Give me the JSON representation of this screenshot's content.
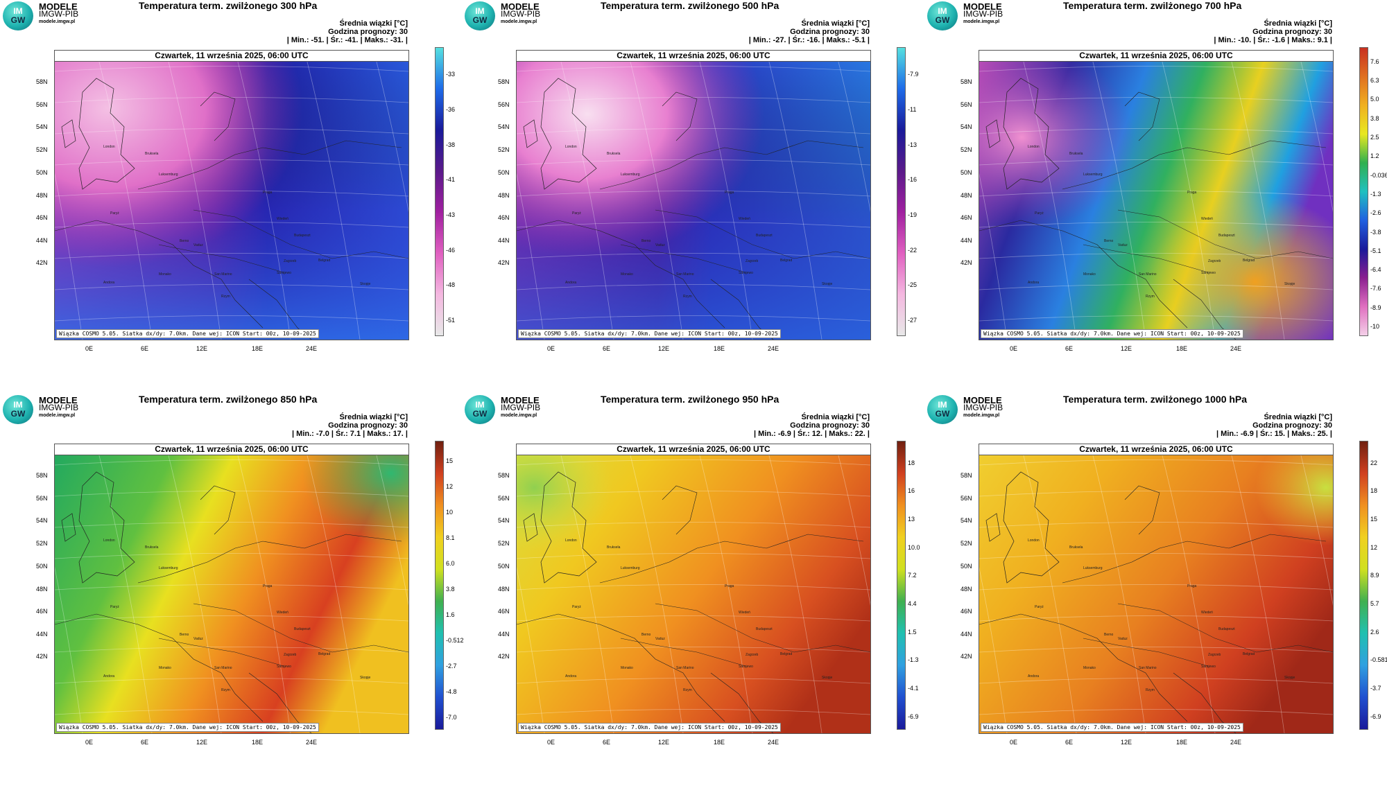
{
  "common": {
    "brand_line1": "MODELE",
    "brand_line2": "IMGW-PIB",
    "brand_line3": "modele.imgw.pl",
    "logo_top": "IM",
    "logo_bottom": "GW",
    "meta_line1": "Średnia wiązki [°C]",
    "meta_line2": "Godzina prognozy: 30",
    "map_header": "Czwartek, 11 września 2025, 06:00 UTC",
    "footer": "Wiązka COSMO 5.05. Siatka dx/dy: 7.0km. Dane wej: ICON Start: 00z, 10-09-2025",
    "lat_labels": [
      "58N",
      "56N",
      "54N",
      "52N",
      "50N",
      "48N",
      "46N",
      "44N",
      "42N"
    ],
    "lon_labels": [
      "0E",
      "6E",
      "12E",
      "18E",
      "24E"
    ],
    "cities": [
      "London",
      "Bruksela",
      "Luksemburg",
      "Paryż",
      "Praga",
      "Wiedeń",
      "Budapeszt",
      "Berno",
      "Vaduz",
      "Monako",
      "Andora",
      "Zagrzeb",
      "San Marino",
      "Sarajewo",
      "Belgrad",
      "Skopje",
      "Rzym"
    ]
  },
  "panels": [
    {
      "title": "Temperatura term. zwilżonego 300 hPa",
      "stats": "| Min.:   -51. | Śr.:   -41. | Maks.:   -31. |",
      "colorbar": [
        "-33",
        "-36",
        "-38",
        "-41",
        "-43",
        "-46",
        "-48",
        "-51"
      ],
      "colors": {
        "bar": [
          "#55e0e0",
          "#1e6be8",
          "#1a1a9a",
          "#5a1a8a",
          "#a020a0",
          "#e060c0",
          "#f4b8e0",
          "#e8e8e8"
        ]
      }
    },
    {
      "title": "Temperatura term. zwilżonego 500 hPa",
      "stats": "| Min.:   -27. | Śr.:   -16. | Maks.:   -5.1 |",
      "colorbar": [
        "-7.9",
        "-11",
        "-13",
        "-16",
        "-19",
        "-22",
        "-25",
        "-27"
      ],
      "colors": {
        "bar": [
          "#55e0e0",
          "#1e6be8",
          "#1a1a9a",
          "#5a1a8a",
          "#a020a0",
          "#e060c0",
          "#f4b8e0",
          "#e8e8e8"
        ]
      }
    },
    {
      "title": "Temperatura term. zwilżonego 700 hPa",
      "stats": "| Min.:   -10. | Śr.:   -1.6 | Maks.:   9.1 |",
      "colorbar": [
        "7.6",
        "6.3",
        "5.0",
        "3.8",
        "2.5",
        "1.2",
        "-0.036",
        "-1.3",
        "-2.6",
        "-3.8",
        "-5.1",
        "-6.4",
        "-7.6",
        "-8.9",
        "-10"
      ],
      "colors": {
        "bar": [
          "#c83020",
          "#e07020",
          "#f0b020",
          "#e8e820",
          "#30b050",
          "#20c0c0",
          "#2060e0",
          "#1a1a9a",
          "#8a2090",
          "#e070c0",
          "#f4d0e8"
        ]
      }
    },
    {
      "title": "Temperatura term. zwilżonego 850 hPa",
      "stats": "| Min.:   -7.0 | Śr.:   7.1 | Maks.:   17. |",
      "colorbar": [
        "15",
        "12",
        "10",
        "8.1",
        "6.0",
        "3.8",
        "1.6",
        "-0.512",
        "-2.7",
        "-4.8",
        "-7.0"
      ],
      "colors": {
        "bar": [
          "#702010",
          "#d04020",
          "#f09020",
          "#f0d020",
          "#d0e020",
          "#40b050",
          "#20c0b0",
          "#30a0e0",
          "#2050d0",
          "#1a1a9a"
        ]
      }
    },
    {
      "title": "Temperatura term. zwilżonego 950 hPa",
      "stats": "| Min.:   -6.9 | Śr.:   12. | Maks.:   22. |",
      "colorbar": [
        "18",
        "16",
        "13",
        "10.0",
        "7.2",
        "4.4",
        "1.5",
        "-1.3",
        "-4.1",
        "-6.9"
      ],
      "colors": {
        "bar": [
          "#702010",
          "#d04020",
          "#f09020",
          "#f0d020",
          "#d0e020",
          "#40b050",
          "#20c0b0",
          "#30a0e0",
          "#2050d0",
          "#1a1a9a"
        ]
      }
    },
    {
      "title": "Temperatura term. zwilżonego 1000 hPa",
      "stats": "| Min.:   -6.9 | Śr.:   15. | Maks.:   25. |",
      "colorbar": [
        "22",
        "18",
        "15",
        "12",
        "8.9",
        "5.7",
        "2.6",
        "-0.581",
        "-3.7",
        "-6.9"
      ],
      "colors": {
        "bar": [
          "#702010",
          "#d04020",
          "#f09020",
          "#f0d020",
          "#d0e020",
          "#40b050",
          "#20c0b0",
          "#30a0e0",
          "#2050d0",
          "#1a1a9a"
        ]
      }
    }
  ]
}
